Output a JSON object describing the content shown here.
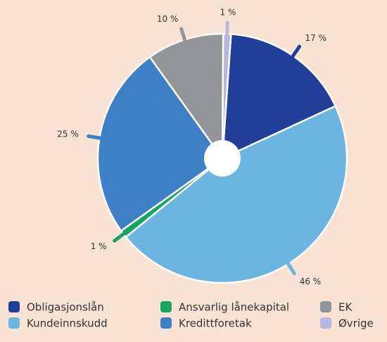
{
  "chart_data": {
    "type": "pie",
    "series": [
      {
        "name": "Obligasjonslån",
        "color": "#213f98",
        "values": [
          17
        ],
        "value_labels": [
          "17 %"
        ]
      },
      {
        "name": "Kundeinnskudd",
        "color": "#6db5e1",
        "values": [
          46
        ],
        "value_labels": [
          "46 %"
        ]
      },
      {
        "name": "Ansvarlig lånekapital",
        "color": "#16a463",
        "values": [
          1
        ],
        "value_labels": [
          "1 %"
        ]
      },
      {
        "name": "Kredittforetak",
        "color": "#3d80c5",
        "values": [
          25
        ],
        "value_labels": [
          "25 %"
        ]
      },
      {
        "name": "EK",
        "color": "#949599",
        "values": [
          10
        ],
        "value_labels": [
          "10 %"
        ]
      },
      {
        "name": "Øvrige",
        "color": "#bab7de",
        "values": [
          1
        ],
        "value_labels": [
          "1 %"
        ]
      }
    ]
  }
}
